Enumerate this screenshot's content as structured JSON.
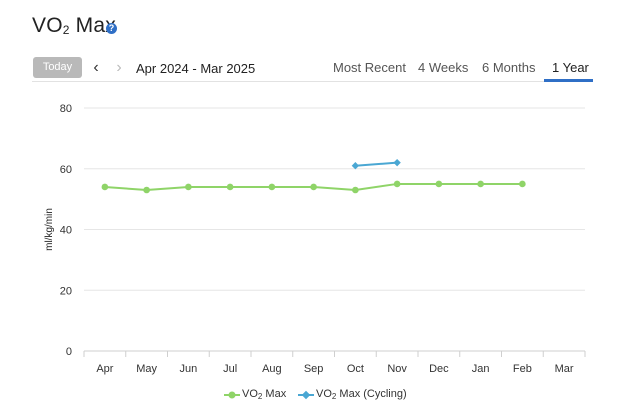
{
  "header": {
    "title_main": "VO",
    "title_sub": "2",
    "title_rest": " Max",
    "help_icon": "question-circle-icon"
  },
  "toolbar": {
    "today_label": "Today",
    "prev_icon": "chevron-left-icon",
    "next_icon": "chevron-right-icon",
    "date_range": "Apr 2024 - Mar 2025"
  },
  "tabs": [
    {
      "label": "Most Recent",
      "active": false
    },
    {
      "label": "4 Weeks",
      "active": false
    },
    {
      "label": "6 Months",
      "active": false
    },
    {
      "label": "1 Year",
      "active": true
    }
  ],
  "colors": {
    "accent": "#2f6fc6",
    "vo2": "#8fd468",
    "vo2_cycling": "#4aa7d3",
    "grid": "#e6e6e6"
  },
  "chart_data": {
    "type": "line",
    "ylabel": "ml/kg/min",
    "ylim": [
      0,
      80
    ],
    "yticks": [
      0,
      20,
      40,
      60,
      80
    ],
    "categories": [
      "Apr",
      "May",
      "Jun",
      "Jul",
      "Aug",
      "Sep",
      "Oct",
      "Nov",
      "Dec",
      "Jan",
      "Feb",
      "Mar"
    ],
    "grid": true,
    "legend_position": "bottom",
    "series": [
      {
        "name_main": "VO",
        "name_sub": "2",
        "name_rest": " Max",
        "marker": "circle",
        "values": [
          54,
          53,
          54,
          54,
          54,
          54,
          53,
          55,
          55,
          55,
          55,
          null
        ]
      },
      {
        "name_main": "VO",
        "name_sub": "2",
        "name_rest": " Max (Cycling)",
        "marker": "diamond",
        "values": [
          null,
          null,
          null,
          null,
          null,
          null,
          61,
          62,
          null,
          null,
          null,
          null
        ]
      }
    ]
  }
}
